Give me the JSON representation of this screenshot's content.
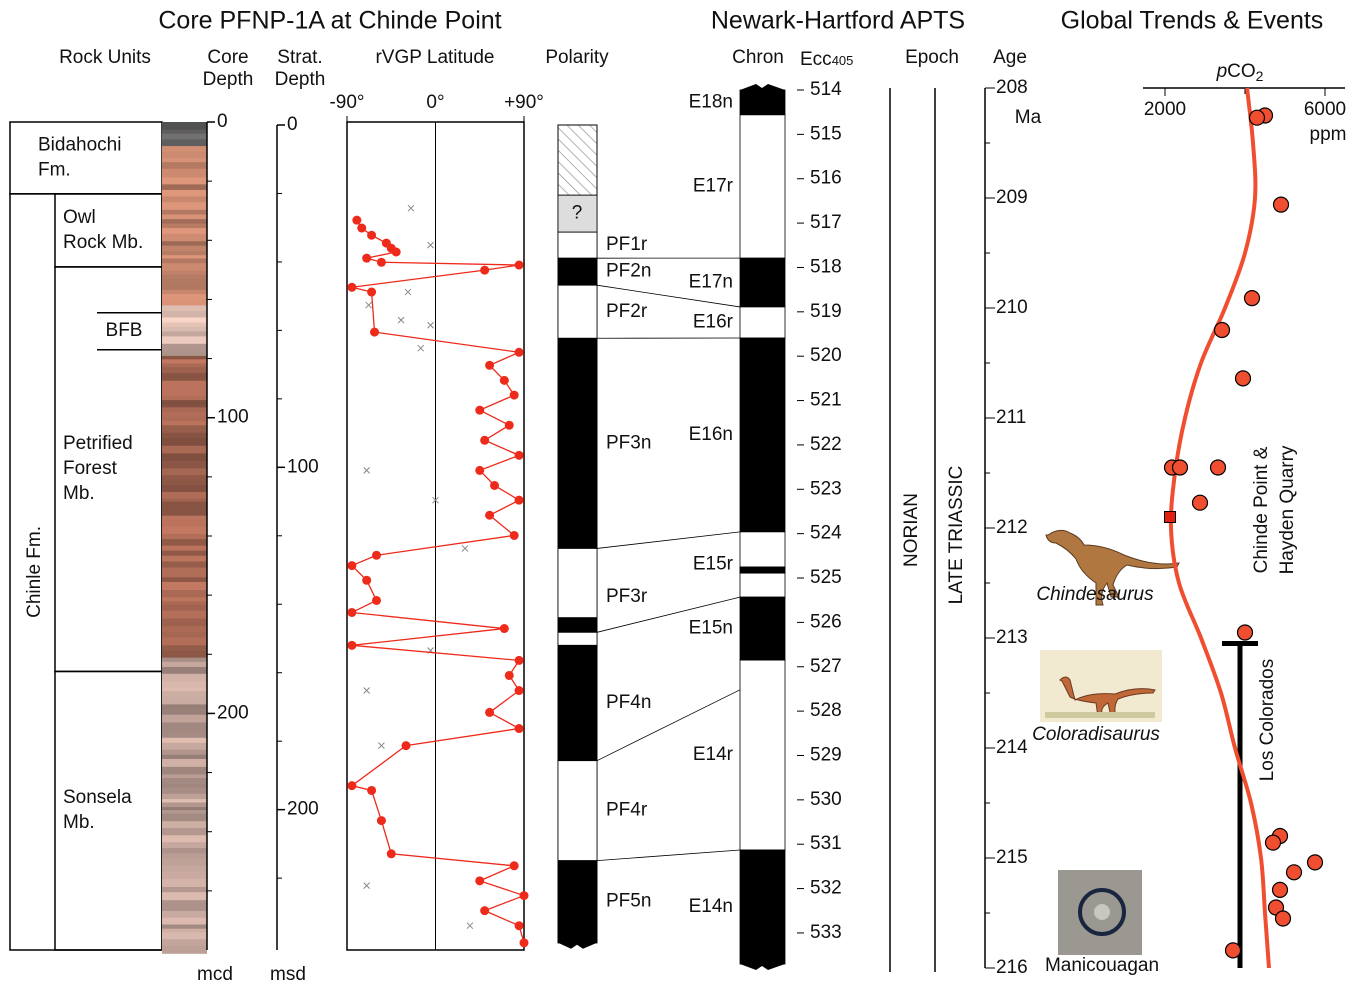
{
  "titles": {
    "core": "Core PFNP-1A at Chinde Point",
    "apts": "Newark-Hartford APTS",
    "global": "Global Trends & Events"
  },
  "headers": {
    "rock_units": [
      "Rock Units"
    ],
    "core_depth": [
      "Core",
      "Depth"
    ],
    "strat_depth": [
      "Strat.",
      "Depth"
    ],
    "rvgp": [
      "rVGP Latitude"
    ],
    "polarity": [
      "Polarity"
    ],
    "chron": [
      "Chron"
    ],
    "epoch": [
      "Epoch"
    ],
    "age": [
      "Age"
    ]
  },
  "ecc_header": {
    "text": "Ecc",
    "subscript": "405"
  },
  "rock_units": {
    "formations": [
      {
        "name": [
          "Bidahochi",
          "Fm."
        ],
        "top": 0,
        "base": 24.3
      },
      {
        "name": [
          "Chinle Fm."
        ],
        "top": 24.3,
        "base": 280
      }
    ],
    "members": [
      {
        "name": [
          "Owl",
          "Rock Mb."
        ],
        "top": 24.3,
        "base": 49
      },
      {
        "name": [
          "Petrified",
          "Forest",
          "Mb."
        ],
        "top": 49,
        "base": 185.8
      },
      {
        "name": [
          "Sonsela",
          "Mb."
        ],
        "top": 185.8,
        "base": 280
      }
    ],
    "beds": [
      {
        "name": [
          "BFB"
        ],
        "top": 64.5,
        "base": 77
      }
    ]
  },
  "core_depth": {
    "unit": "mcd",
    "ylim": [
      0,
      280
    ],
    "yticks": [
      0,
      100,
      200
    ],
    "minor_ticks": [
      20,
      40,
      60,
      80,
      120,
      140,
      160,
      180,
      220,
      240,
      260
    ]
  },
  "strat_depth": {
    "unit": "msd",
    "ylim": [
      0,
      241
    ],
    "yticks": [
      0,
      100,
      200
    ],
    "minor_ticks": [
      20,
      40,
      60,
      80,
      120,
      140,
      160,
      180,
      220
    ]
  },
  "rvgp": {
    "xlim": [
      -90,
      90
    ],
    "xticks": [
      {
        "value": -90,
        "label": "-90°"
      },
      {
        "value": 0,
        "label": "0°"
      },
      {
        "value": 90,
        "label": "+90°"
      }
    ],
    "color": "#ee2a1b",
    "depth": [
      27.8,
      30.1,
      32.2,
      34.5,
      36.0,
      37.1,
      38.9,
      40.1,
      40.9,
      42.4,
      47.4,
      48.8,
      60.5,
      66.4,
      70.2,
      74.6,
      78.9,
      83.3,
      87.7,
      92.1,
      96.5,
      100.9,
      105.3,
      109.6,
      114.0,
      119.9,
      125.7,
      128.7,
      133.0,
      138.9,
      142.4,
      147.1,
      152.0,
      156.4,
      160.8,
      165.2,
      171.6,
      176.3,
      181.3,
      193.0,
      194.4,
      203.2,
      212.9,
      216.4,
      220.8,
      225.1,
      229.5,
      233.9,
      238.9
    ],
    "latitude": [
      -80,
      -75,
      -65,
      -50,
      -45,
      -40,
      -70,
      -55,
      85,
      50,
      -85,
      -65,
      -62,
      85,
      55,
      70,
      80,
      45,
      75,
      50,
      85,
      45,
      60,
      85,
      55,
      80,
      -60,
      -85,
      -70,
      -60,
      -85,
      70,
      -85,
      85,
      75,
      85,
      55,
      85,
      -30,
      -85,
      -65,
      -55,
      -45,
      80,
      45,
      90,
      50,
      85,
      90
    ],
    "rejected": {
      "depth": [
        24.3,
        35.1,
        48.8,
        52.6,
        57.0,
        58.5,
        65.2,
        100.9,
        109.6,
        123.7,
        153.5,
        165.2,
        181.3,
        222.2,
        233.9
      ],
      "latitude": [
        -25,
        -5,
        -28,
        -68,
        -35,
        -5,
        -15,
        -70,
        0,
        30,
        -5,
        -70,
        -55,
        -70,
        35
      ]
    }
  },
  "polarity": {
    "zones": [
      {
        "name": null,
        "top": 0,
        "base": 20.5,
        "fill": "hatch"
      },
      {
        "name": "?",
        "top": 20.5,
        "base": 31.3,
        "fill": "gray"
      },
      {
        "name": "PF1r",
        "top": 31.3,
        "base": 38.9,
        "fill": "white"
      },
      {
        "name": "PF2n",
        "top": 38.9,
        "base": 46.8,
        "fill": "black"
      },
      {
        "name": "PF2r",
        "top": 46.8,
        "base": 62.3,
        "fill": "white"
      },
      {
        "name": "PF3n",
        "top": 62.3,
        "base": 123.7,
        "fill": "black"
      },
      {
        "name": "PF3r",
        "top": 123.7,
        "base": 152.0,
        "fill": "white"
      },
      {
        "name": null,
        "top": 143.9,
        "base": 148.2,
        "fill": "black"
      },
      {
        "name": "PF4n",
        "top": 152.0,
        "base": 185.7,
        "fill": "black"
      },
      {
        "name": "PF4r",
        "top": 185.7,
        "base": 214.9,
        "fill": "white"
      },
      {
        "name": "PF5n",
        "top": 214.9,
        "base": 238.9,
        "fill": "black"
      }
    ]
  },
  "correlations": [
    [
      38.9,
      517.79
    ],
    [
      46.8,
      518.89
    ],
    [
      62.3,
      519.59
    ],
    [
      123.7,
      523.96
    ],
    [
      148.2,
      525.43
    ],
    [
      185.7,
      527.52
    ],
    [
      214.9,
      531.13
    ]
  ],
  "chron": {
    "zones": [
      {
        "name": "E18n",
        "top": 514,
        "base": 514.56,
        "fill": "black"
      },
      {
        "name": "E17r",
        "top": 514.56,
        "base": 517.79,
        "fill": "white"
      },
      {
        "name": "E17n",
        "top": 517.79,
        "base": 518.89,
        "fill": "black"
      },
      {
        "name": "E16r",
        "top": 518.89,
        "base": 519.59,
        "fill": "white"
      },
      {
        "name": "E16n",
        "top": 519.59,
        "base": 523.96,
        "fill": "black"
      },
      {
        "name": "E15r",
        "top": 523.96,
        "base": 525.43,
        "fill": "white"
      },
      {
        "name": null,
        "top": 524.75,
        "base": 524.89,
        "fill": "black"
      },
      {
        "name": "E15n",
        "top": 525.43,
        "base": 526.85,
        "fill": "black"
      },
      {
        "name": "E14r",
        "top": 526.85,
        "base": 531.13,
        "fill": "white"
      },
      {
        "name": "E14n",
        "top": 531.13,
        "base": 533.7,
        "fill": "black"
      }
    ]
  },
  "ecc405": {
    "ylim": [
      514,
      533.7
    ],
    "yticks": [
      514,
      515,
      516,
      517,
      518,
      519,
      520,
      521,
      522,
      523,
      524,
      525,
      526,
      527,
      528,
      529,
      530,
      531,
      532,
      533
    ]
  },
  "epoch": {
    "stage": "NORIAN",
    "series": "LATE TRIASSIC"
  },
  "age": {
    "unit": "Ma",
    "ylim": [
      208,
      216
    ],
    "yticks": [
      208,
      209,
      210,
      211,
      212,
      213,
      214,
      215,
      216
    ],
    "minor_ticks": [
      208.5,
      209.5,
      210.5,
      211.5,
      212.5,
      213.5,
      214.5,
      215.5
    ]
  },
  "pco2": {
    "label": {
      "italic": "p",
      "text": "CO",
      "subscript": "2"
    },
    "unit": "ppm",
    "xlim": [
      2000,
      6000
    ],
    "xticks": [
      2000,
      6000
    ],
    "minor_ticks": [
      4000
    ],
    "color": "#f04e30",
    "curve": {
      "age": [
        208,
        208.5,
        209,
        209.5,
        210,
        210.5,
        211,
        211.5,
        212,
        212.5,
        213,
        213.5,
        214,
        214.5,
        215,
        215.5,
        216
      ],
      "ppm": [
        4050,
        4200,
        4250,
        4000,
        3500,
        2900,
        2500,
        2250,
        2150,
        2350,
        2900,
        3400,
        3750,
        4150,
        4400,
        4500,
        4600
      ]
    },
    "points": {
      "age": [
        208.25,
        208.27,
        209.06,
        209.91,
        210.2,
        210.64,
        211.45,
        211.45,
        211.45,
        211.77,
        212.95,
        214.8,
        214.86,
        215.04,
        215.13,
        215.29,
        215.45,
        215.55,
        215.84
      ],
      "ppm": [
        4500,
        4300,
        4900,
        4175,
        3425,
        3950,
        2175,
        2375,
        3325,
        2875,
        4000,
        4875,
        4700,
        5750,
        5225,
        4875,
        4775,
        4950,
        3700
      ]
    },
    "square_point": {
      "age": 211.9,
      "ppm": 2125
    }
  },
  "events": {
    "chinde": [
      "Chinde Point &",
      "Hayden Quarry"
    ],
    "los_colorados": {
      "name": "Los Colorados",
      "top": 213.05,
      "base": 216
    },
    "taxa": [
      "Chindesaurus",
      "Coloradisaurus"
    ],
    "impact": "Manicouagan"
  }
}
